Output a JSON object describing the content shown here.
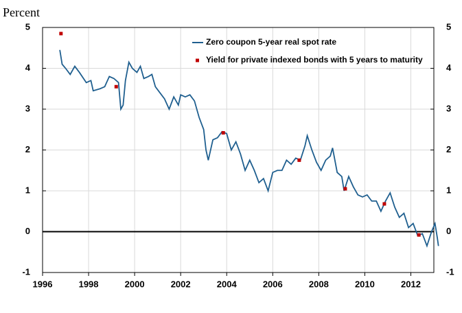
{
  "chart_data": {
    "type": "line",
    "ylabel": "Percent",
    "xlim": [
      1996,
      2013
    ],
    "xticks": [
      1996,
      1998,
      2000,
      2002,
      2004,
      2006,
      2008,
      2010,
      2012
    ],
    "ylim": [
      -1,
      5
    ],
    "yticks": [
      -1,
      0,
      1,
      2,
      3,
      4,
      5
    ],
    "grid": true,
    "legend": "upper right",
    "series": [
      {
        "name": "Zero coupon 5-year real spot rate",
        "color": "#1f5f8f",
        "type": "line",
        "x": [
          1996.75,
          1996.85,
          1997.0,
          1997.2,
          1997.4,
          1997.6,
          1997.9,
          1998.1,
          1998.2,
          1998.5,
          1998.7,
          1998.9,
          1999.1,
          1999.3,
          1999.4,
          1999.5,
          1999.6,
          1999.75,
          1999.9,
          2000.1,
          2000.25,
          2000.4,
          2000.6,
          2000.75,
          2000.9,
          2001.1,
          2001.3,
          2001.5,
          2001.7,
          2001.9,
          2002.0,
          2002.2,
          2002.4,
          2002.6,
          2002.8,
          2003.0,
          2003.1,
          2003.2,
          2003.4,
          2003.6,
          2003.8,
          2004.0,
          2004.2,
          2004.4,
          2004.6,
          2004.8,
          2005.0,
          2005.2,
          2005.4,
          2005.6,
          2005.8,
          2006.0,
          2006.2,
          2006.4,
          2006.6,
          2006.8,
          2007.0,
          2007.2,
          2007.4,
          2007.5,
          2007.7,
          2007.9,
          2008.1,
          2008.3,
          2008.5,
          2008.6,
          2008.8,
          2009.0,
          2009.1,
          2009.3,
          2009.5,
          2009.7,
          2009.9,
          2010.1,
          2010.3,
          2010.5,
          2010.7,
          2010.9,
          2011.1,
          2011.3,
          2011.5,
          2011.7,
          2011.9,
          2012.1,
          2012.3,
          2012.5,
          2012.7,
          2012.9,
          2013.05,
          2013.15,
          2013.2
        ],
        "values": [
          4.45,
          4.1,
          4.0,
          3.85,
          4.05,
          3.9,
          3.65,
          3.7,
          3.45,
          3.5,
          3.55,
          3.8,
          3.75,
          3.65,
          3.0,
          3.1,
          3.7,
          4.15,
          4.0,
          3.9,
          4.05,
          3.75,
          3.8,
          3.85,
          3.55,
          3.4,
          3.25,
          3.0,
          3.3,
          3.1,
          3.35,
          3.3,
          3.35,
          3.2,
          2.8,
          2.5,
          2.0,
          1.75,
          2.25,
          2.3,
          2.45,
          2.4,
          2.0,
          2.2,
          1.9,
          1.5,
          1.75,
          1.5,
          1.2,
          1.3,
          1.0,
          1.45,
          1.5,
          1.5,
          1.75,
          1.65,
          1.8,
          1.75,
          2.1,
          2.35,
          2.0,
          1.7,
          1.5,
          1.75,
          1.85,
          2.05,
          1.45,
          1.35,
          1.0,
          1.35,
          1.1,
          0.9,
          0.85,
          0.9,
          0.75,
          0.75,
          0.5,
          0.75,
          0.95,
          0.6,
          0.35,
          0.45,
          0.1,
          0.2,
          -0.1,
          -0.05,
          -0.35,
          0.0,
          0.2,
          -0.15,
          -0.35
        ]
      },
      {
        "name": "Yield for private indexed bonds with 5 years to maturity",
        "color": "#c00000",
        "type": "scatter",
        "x": [
          1996.8,
          1999.2,
          2003.85,
          2007.15,
          2009.15,
          2010.85,
          2012.35
        ],
        "values": [
          4.85,
          3.55,
          2.42,
          1.75,
          1.05,
          0.68,
          -0.08
        ]
      }
    ]
  }
}
